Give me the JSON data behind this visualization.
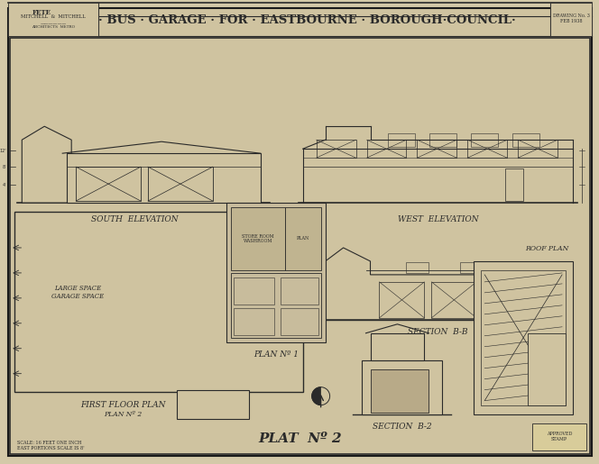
{
  "title": "· BUS · GARAGE · FOR · EASTBOURNE · BOROUGH·COUNCIL·",
  "bg_color": "#d4c9a8",
  "paper_color": "#cfc3a0",
  "line_color": "#2a2a2a",
  "light_line": "#555544",
  "border_color": "#1a1a1a",
  "stamp_text": "MITCHELL & MITCHELL\nARCHITECTS  METRO",
  "plat_no2_text": "PLAT  Nº 2",
  "south_elev_label": "SOUTH  ELEVATION",
  "west_elev_label": "WEST  ELEVATION",
  "section_bb_label": "SECTION  B-B",
  "section_b2_label": "SECTION  B-2",
  "roof_plan_label": "ROOF PLAN",
  "first_floor_label": "FIRST FLOOR PLAN",
  "plan_no2_label": "PLAN Nº 2",
  "plan_no1_label": "PLAN Nº 1",
  "figwidth": 6.64,
  "figheight": 5.15
}
